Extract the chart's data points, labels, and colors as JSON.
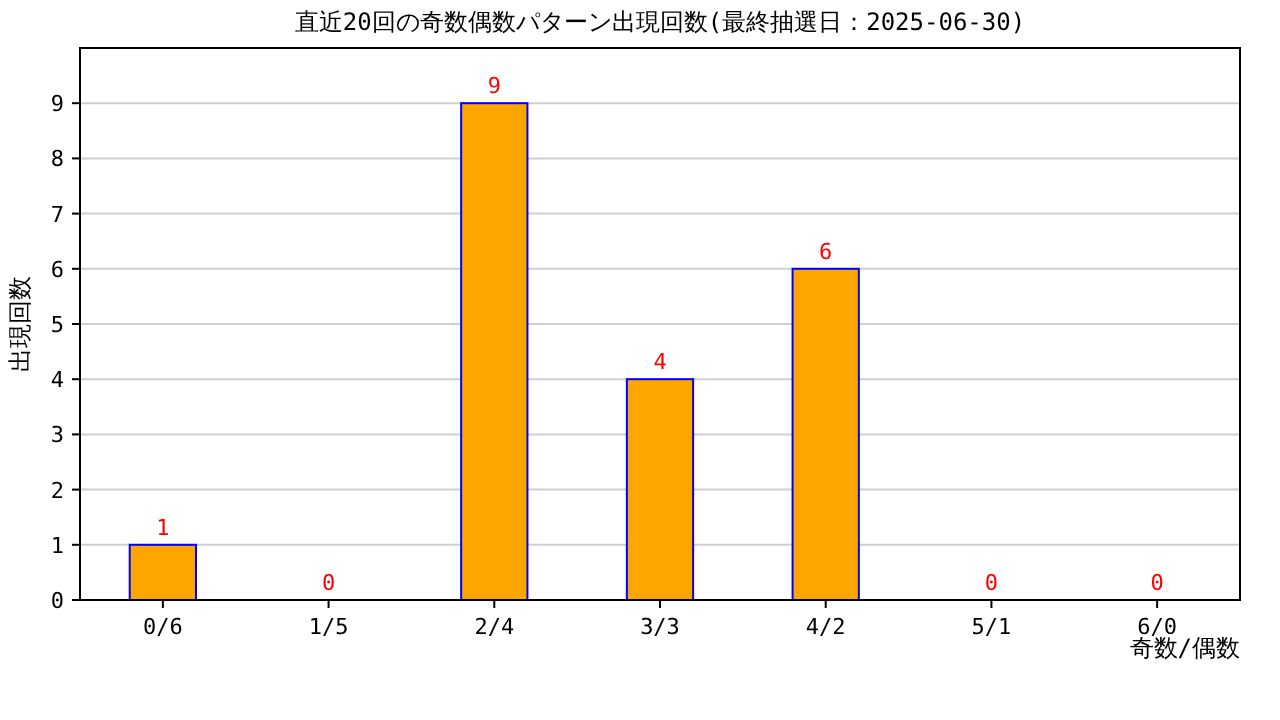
{
  "chart_data": {
    "type": "bar",
    "title": "直近20回の奇数偶数パターン出現回数(最終抽選日：2025-06-30)",
    "xlabel": "奇数/偶数",
    "ylabel": "出現回数",
    "categories": [
      "0/6",
      "1/5",
      "2/4",
      "3/3",
      "4/2",
      "5/1",
      "6/0"
    ],
    "values": [
      1,
      0,
      9,
      4,
      6,
      0,
      0
    ],
    "color": "#ffa500",
    "ylim": [
      0,
      10
    ],
    "yticks": [
      0,
      1,
      2,
      3,
      4,
      5,
      6,
      7,
      8,
      9
    ],
    "grid": "y",
    "data_labels": true
  }
}
